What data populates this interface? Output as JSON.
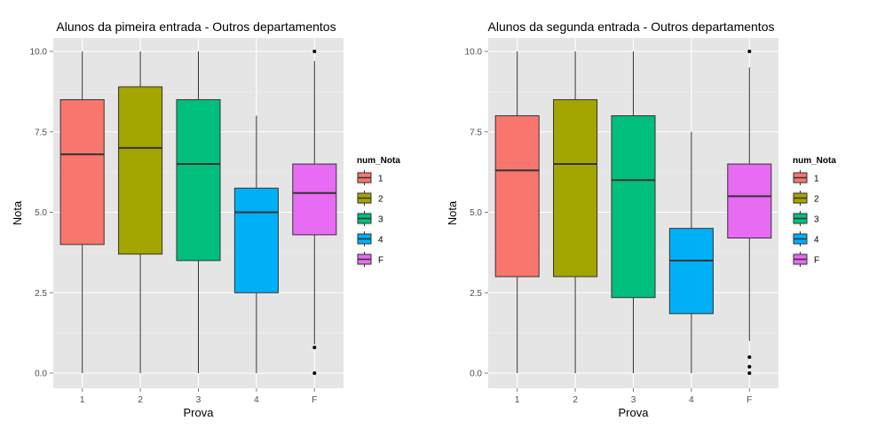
{
  "chart_data": [
    {
      "type": "boxplot",
      "title": "Alunos da pimeira entrada - Outros departamentos",
      "xlabel": "Prova",
      "ylabel": "Nota",
      "ylim": [
        0,
        10
      ],
      "yticks": [
        "0.0",
        "2.5",
        "5.0",
        "7.5",
        "10.0"
      ],
      "categories": [
        "1",
        "2",
        "3",
        "4",
        "F"
      ],
      "boxes": [
        {
          "category": "1",
          "min": 0,
          "q1": 4.0,
          "median": 6.8,
          "q3": 8.5,
          "max": 10,
          "outliers": []
        },
        {
          "category": "2",
          "min": 0,
          "q1": 3.7,
          "median": 7.0,
          "q3": 8.9,
          "max": 10,
          "outliers": []
        },
        {
          "category": "3",
          "min": 0,
          "q1": 3.5,
          "median": 6.5,
          "q3": 8.5,
          "max": 10,
          "outliers": []
        },
        {
          "category": "4",
          "min": 0,
          "q1": 2.5,
          "median": 5.0,
          "q3": 5.75,
          "max": 8.0,
          "outliers": []
        },
        {
          "category": "F",
          "min": 0.9,
          "q1": 4.3,
          "median": 5.6,
          "q3": 6.5,
          "max": 9.7,
          "outliers": [
            10,
            0.8,
            0
          ]
        }
      ],
      "legend": {
        "title": "num_Nota",
        "items": [
          "1",
          "2",
          "3",
          "4",
          "F"
        ],
        "position": "right"
      }
    },
    {
      "type": "boxplot",
      "title": "Alunos da segunda entrada - Outros departamentos",
      "xlabel": "Prova",
      "ylabel": "Nota",
      "ylim": [
        0,
        10
      ],
      "yticks": [
        "0.0",
        "2.5",
        "5.0",
        "7.5",
        "10.0"
      ],
      "categories": [
        "1",
        "2",
        "3",
        "4",
        "F"
      ],
      "boxes": [
        {
          "category": "1",
          "min": 0,
          "q1": 3.0,
          "median": 6.3,
          "q3": 8.0,
          "max": 10,
          "outliers": []
        },
        {
          "category": "2",
          "min": 0,
          "q1": 3.0,
          "median": 6.5,
          "q3": 8.5,
          "max": 10,
          "outliers": []
        },
        {
          "category": "3",
          "min": 0,
          "q1": 2.35,
          "median": 6.0,
          "q3": 8.0,
          "max": 10,
          "outliers": []
        },
        {
          "category": "4",
          "min": 0,
          "q1": 1.85,
          "median": 3.5,
          "q3": 4.5,
          "max": 7.5,
          "outliers": []
        },
        {
          "category": "F",
          "min": 1.0,
          "q1": 4.2,
          "median": 5.5,
          "q3": 6.5,
          "max": 9.5,
          "outliers": [
            10,
            0.5,
            0.2,
            0
          ]
        }
      ],
      "legend": {
        "title": "num_Nota",
        "items": [
          "1",
          "2",
          "3",
          "4",
          "F"
        ],
        "position": "right"
      }
    }
  ],
  "colors": {
    "1": "#F8766D",
    "2": "#A3A500",
    "3": "#00BF7D",
    "4": "#00B0F6",
    "F": "#E76BF3",
    "panel_background": "#E5E5E5",
    "grid": "#FFFFFF"
  }
}
